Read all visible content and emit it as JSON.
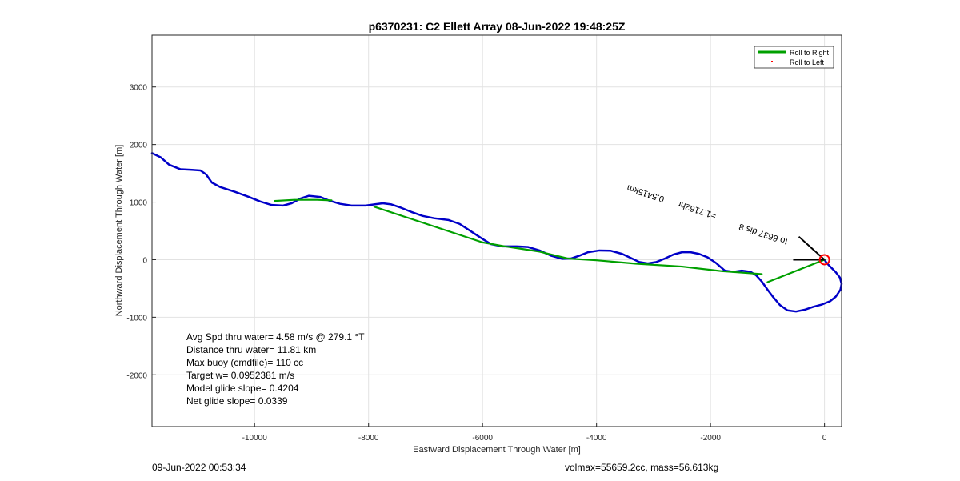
{
  "chart_data": {
    "type": "line",
    "title": "p6370231: C2 Ellett Array 08-Jun-2022 19:48:25Z",
    "xlabel": "Eastward Displacement Through Water [m]",
    "ylabel": "Northward Displacement Through Water [m]",
    "xlim": [
      -11800,
      300
    ],
    "ylim": [
      -2900,
      3900
    ],
    "xticks": [
      -10000,
      -8000,
      -6000,
      -4000,
      -2000,
      0
    ],
    "yticks": [
      -2000,
      -1000,
      0,
      1000,
      2000,
      3000
    ],
    "grid": true,
    "legend_position": "top-right",
    "legend": [
      {
        "label": "Roll to Right",
        "color": "#00a000",
        "marker": "line"
      },
      {
        "label": "Roll to Left",
        "color": "#ff0000",
        "marker": "dot"
      }
    ],
    "series": [
      {
        "color": "#0000c8",
        "points": [
          [
            -11800,
            1850
          ],
          [
            -11650,
            1780
          ],
          [
            -11500,
            1650
          ],
          [
            -11300,
            1570
          ],
          [
            -11100,
            1560
          ],
          [
            -10950,
            1550
          ],
          [
            -10850,
            1480
          ],
          [
            -10750,
            1340
          ],
          [
            -10600,
            1260
          ],
          [
            -10350,
            1180
          ],
          [
            -10100,
            1090
          ],
          [
            -9900,
            1010
          ],
          [
            -9700,
            950
          ],
          [
            -9500,
            940
          ],
          [
            -9350,
            980
          ],
          [
            -9200,
            1060
          ],
          [
            -9050,
            1110
          ],
          [
            -8850,
            1090
          ],
          [
            -8700,
            1030
          ],
          [
            -8500,
            970
          ],
          [
            -8300,
            940
          ],
          [
            -8050,
            940
          ],
          [
            -7900,
            960
          ],
          [
            -7750,
            980
          ],
          [
            -7600,
            960
          ],
          [
            -7450,
            910
          ],
          [
            -7250,
            830
          ],
          [
            -7050,
            760
          ],
          [
            -6850,
            720
          ],
          [
            -6600,
            690
          ],
          [
            -6400,
            620
          ],
          [
            -6200,
            490
          ],
          [
            -6000,
            360
          ],
          [
            -5850,
            270
          ],
          [
            -5650,
            230
          ],
          [
            -5400,
            230
          ],
          [
            -5200,
            220
          ],
          [
            -5000,
            160
          ],
          [
            -4800,
            70
          ],
          [
            -4600,
            15
          ],
          [
            -4450,
            20
          ],
          [
            -4300,
            70
          ],
          [
            -4150,
            130
          ],
          [
            -3950,
            160
          ],
          [
            -3750,
            155
          ],
          [
            -3550,
            100
          ],
          [
            -3400,
            30
          ],
          [
            -3250,
            -40
          ],
          [
            -3100,
            -65
          ],
          [
            -2950,
            -40
          ],
          [
            -2800,
            20
          ],
          [
            -2650,
            90
          ],
          [
            -2500,
            130
          ],
          [
            -2350,
            130
          ],
          [
            -2200,
            100
          ],
          [
            -2050,
            40
          ],
          [
            -1900,
            -60
          ],
          [
            -1750,
            -190
          ],
          [
            -1600,
            -210
          ],
          [
            -1450,
            -190
          ],
          [
            -1300,
            -210
          ],
          [
            -1200,
            -270
          ],
          [
            -1100,
            -380
          ],
          [
            -1000,
            -520
          ],
          [
            -900,
            -650
          ],
          [
            -780,
            -790
          ],
          [
            -650,
            -880
          ],
          [
            -500,
            -900
          ],
          [
            -350,
            -870
          ],
          [
            -200,
            -820
          ],
          [
            -50,
            -780
          ],
          [
            100,
            -720
          ],
          [
            200,
            -640
          ],
          [
            280,
            -520
          ],
          [
            300,
            -420
          ],
          [
            270,
            -310
          ],
          [
            200,
            -220
          ],
          [
            120,
            -140
          ],
          [
            40,
            -60
          ],
          [
            0,
            0
          ]
        ]
      },
      {
        "name": "Roll to Right",
        "color": "#00a000",
        "segments": [
          [
            [
              -9650,
              1020
            ],
            [
              -9300,
              1040
            ],
            [
              -8900,
              1040
            ],
            [
              -8650,
              1030
            ]
          ],
          [
            [
              -7900,
              920
            ],
            [
              -6000,
              300
            ],
            [
              -5600,
              230
            ],
            [
              -5000,
              140
            ],
            [
              -4500,
              20
            ],
            [
              -4000,
              -10
            ],
            [
              -3300,
              -70
            ],
            [
              -2500,
              -120
            ],
            [
              -1800,
              -200
            ],
            [
              -1100,
              -250
            ]
          ],
          [
            [
              -1000,
              -390
            ],
            [
              0,
              0
            ]
          ]
        ]
      }
    ],
    "glider_position": {
      "x": 0,
      "y": 0,
      "color": "#ff0000"
    },
    "current_vectors": [
      {
        "dx": -450,
        "dy": 400,
        "color": "#000000"
      },
      {
        "dx": -550,
        "dy": 0,
        "color": "#000000"
      }
    ],
    "annotations": {
      "rotated_label": "0.5415km",
      "rotated_overlap": "=1.7162hr ",
      "rotated_cluster_text": "to 6637 dis 8"
    },
    "stats_lines": [
      "Avg Spd thru water=  4.58 m/s @ 279.1 °T",
      "Distance thru water= 11.81 km",
      "Max buoy (cmdfile)= 110 cc",
      "Target w= 0.0952381 m/s",
      "Model glide slope= 0.4204",
      "Net glide slope= 0.0339"
    ]
  },
  "footer": {
    "left": "09-Jun-2022 00:53:34",
    "right": "volmax=55659.2cc, mass=56.613kg"
  }
}
